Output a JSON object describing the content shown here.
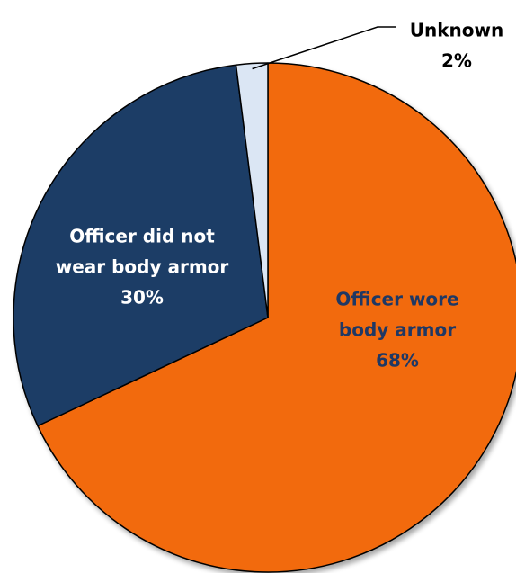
{
  "chart_data": {
    "type": "pie",
    "slices": [
      {
        "category": "Officer wore body armor",
        "label_lines": [
          "Officer wore",
          "body armor",
          "68%"
        ],
        "value": 68,
        "color": "#f26b0f",
        "label_color": "#1f3864"
      },
      {
        "category": "Officer did not wear body armor",
        "label_lines": [
          "Officer did not",
          "wear body armor",
          "30%"
        ],
        "value": 30,
        "color": "#1f3d66",
        "label_color": "#ffffff"
      },
      {
        "category": "Unknown",
        "label_lines": [
          "Unknown",
          "2%"
        ],
        "value": 2,
        "color": "#dbe6f4",
        "label_color": "#000000"
      }
    ],
    "start_angle_deg": 0,
    "direction": "clockwise",
    "slice_outline_color": "#000000",
    "callout_slice": "Unknown"
  }
}
